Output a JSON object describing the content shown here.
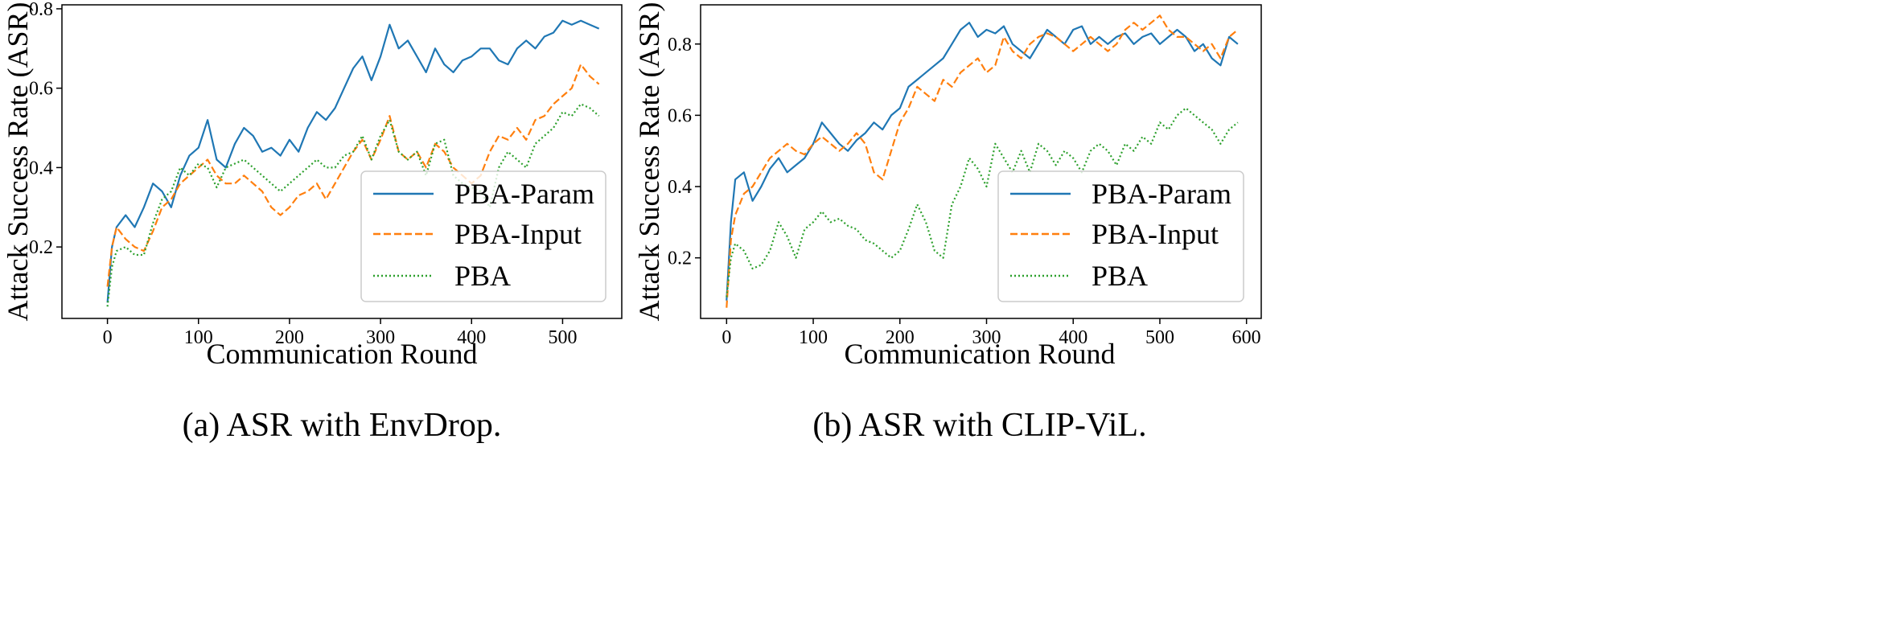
{
  "chart_data": [
    {
      "type": "line",
      "caption": "(a) ASR with EnvDrop.",
      "xlabel": "Communication Round",
      "ylabel": "Attack Success Rate (ASR)",
      "xlim": [
        -50,
        565
      ],
      "ylim": [
        0.02,
        0.81
      ],
      "xticks": [
        0,
        100,
        200,
        300,
        400,
        500
      ],
      "yticks": [
        0.2,
        0.4,
        0.6,
        0.8
      ],
      "grid": false,
      "legend_position": "lower right",
      "series": [
        {
          "name": "PBA-Param",
          "color": "#1f77b4",
          "style": "solid",
          "x": [
            0,
            5,
            10,
            20,
            30,
            40,
            50,
            60,
            70,
            80,
            90,
            100,
            110,
            120,
            130,
            140,
            150,
            160,
            170,
            180,
            190,
            200,
            210,
            220,
            230,
            240,
            250,
            260,
            270,
            280,
            290,
            300,
            310,
            320,
            330,
            340,
            350,
            360,
            370,
            380,
            390,
            400,
            410,
            420,
            430,
            440,
            450,
            460,
            470,
            480,
            490,
            500,
            510,
            520,
            530,
            540
          ],
          "y": [
            0.06,
            0.2,
            0.25,
            0.28,
            0.25,
            0.3,
            0.36,
            0.34,
            0.3,
            0.38,
            0.43,
            0.45,
            0.52,
            0.42,
            0.4,
            0.46,
            0.5,
            0.48,
            0.44,
            0.45,
            0.43,
            0.47,
            0.44,
            0.5,
            0.54,
            0.52,
            0.55,
            0.6,
            0.65,
            0.68,
            0.62,
            0.68,
            0.76,
            0.7,
            0.72,
            0.68,
            0.64,
            0.7,
            0.66,
            0.64,
            0.67,
            0.68,
            0.7,
            0.7,
            0.67,
            0.66,
            0.7,
            0.72,
            0.7,
            0.73,
            0.74,
            0.77,
            0.76,
            0.77,
            0.76,
            0.75
          ]
        },
        {
          "name": "PBA-Input",
          "color": "#ff7f0e",
          "style": "dashed",
          "x": [
            0,
            5,
            10,
            20,
            30,
            40,
            50,
            60,
            70,
            80,
            90,
            100,
            110,
            120,
            130,
            140,
            150,
            160,
            170,
            180,
            190,
            200,
            210,
            220,
            230,
            240,
            250,
            260,
            270,
            280,
            290,
            300,
            310,
            320,
            330,
            340,
            350,
            360,
            370,
            380,
            390,
            400,
            410,
            420,
            430,
            440,
            450,
            460,
            470,
            480,
            490,
            500,
            510,
            520,
            530,
            540
          ],
          "y": [
            0.1,
            0.2,
            0.25,
            0.22,
            0.2,
            0.19,
            0.24,
            0.3,
            0.32,
            0.36,
            0.38,
            0.4,
            0.42,
            0.38,
            0.36,
            0.36,
            0.38,
            0.36,
            0.34,
            0.3,
            0.28,
            0.3,
            0.33,
            0.34,
            0.36,
            0.32,
            0.36,
            0.4,
            0.44,
            0.47,
            0.42,
            0.47,
            0.53,
            0.44,
            0.42,
            0.44,
            0.4,
            0.46,
            0.44,
            0.4,
            0.38,
            0.36,
            0.38,
            0.44,
            0.48,
            0.47,
            0.5,
            0.47,
            0.52,
            0.53,
            0.56,
            0.58,
            0.6,
            0.66,
            0.63,
            0.61
          ]
        },
        {
          "name": "PBA",
          "color": "#2ca02c",
          "style": "dotted",
          "x": [
            0,
            5,
            10,
            20,
            30,
            40,
            50,
            60,
            70,
            80,
            90,
            100,
            110,
            120,
            130,
            140,
            150,
            160,
            170,
            180,
            190,
            200,
            210,
            220,
            230,
            240,
            250,
            260,
            270,
            280,
            290,
            300,
            310,
            320,
            330,
            340,
            350,
            360,
            370,
            380,
            390,
            400,
            410,
            420,
            430,
            440,
            450,
            460,
            470,
            480,
            490,
            500,
            510,
            520,
            530,
            540
          ],
          "y": [
            0.05,
            0.15,
            0.19,
            0.2,
            0.18,
            0.18,
            0.26,
            0.32,
            0.34,
            0.4,
            0.38,
            0.41,
            0.4,
            0.35,
            0.4,
            0.41,
            0.42,
            0.4,
            0.38,
            0.36,
            0.34,
            0.36,
            0.38,
            0.4,
            0.42,
            0.4,
            0.4,
            0.43,
            0.44,
            0.48,
            0.42,
            0.48,
            0.52,
            0.44,
            0.42,
            0.44,
            0.38,
            0.46,
            0.47,
            0.38,
            0.36,
            0.35,
            0.34,
            0.3,
            0.4,
            0.44,
            0.42,
            0.4,
            0.46,
            0.48,
            0.5,
            0.54,
            0.53,
            0.56,
            0.55,
            0.53
          ]
        }
      ]
    },
    {
      "type": "line",
      "caption": "(b) ASR with CLIP-ViL.",
      "xlabel": "Communication Round",
      "ylabel": "Attack Success Rate (ASR)",
      "xlim": [
        -30,
        617
      ],
      "ylim": [
        0.03,
        0.91
      ],
      "xticks": [
        0,
        100,
        200,
        300,
        400,
        500,
        600
      ],
      "yticks": [
        0.2,
        0.4,
        0.6,
        0.8
      ],
      "grid": false,
      "legend_position": "lower right",
      "series": [
        {
          "name": "PBA-Param",
          "color": "#1f77b4",
          "style": "solid",
          "x": [
            0,
            5,
            10,
            20,
            30,
            40,
            50,
            60,
            70,
            80,
            90,
            100,
            110,
            120,
            130,
            140,
            150,
            160,
            170,
            180,
            190,
            200,
            210,
            220,
            230,
            240,
            250,
            260,
            270,
            280,
            290,
            300,
            310,
            320,
            330,
            340,
            350,
            360,
            370,
            380,
            390,
            400,
            410,
            420,
            430,
            440,
            450,
            460,
            470,
            480,
            490,
            500,
            510,
            520,
            530,
            540,
            550,
            560,
            570,
            580,
            590
          ],
          "y": [
            0.08,
            0.3,
            0.42,
            0.44,
            0.36,
            0.4,
            0.45,
            0.48,
            0.44,
            0.46,
            0.48,
            0.52,
            0.58,
            0.55,
            0.52,
            0.5,
            0.53,
            0.55,
            0.58,
            0.56,
            0.6,
            0.62,
            0.68,
            0.7,
            0.72,
            0.74,
            0.76,
            0.8,
            0.84,
            0.86,
            0.82,
            0.84,
            0.83,
            0.85,
            0.8,
            0.78,
            0.76,
            0.8,
            0.84,
            0.82,
            0.8,
            0.84,
            0.85,
            0.8,
            0.82,
            0.8,
            0.82,
            0.83,
            0.8,
            0.82,
            0.83,
            0.8,
            0.82,
            0.84,
            0.82,
            0.78,
            0.8,
            0.76,
            0.74,
            0.82,
            0.8
          ]
        },
        {
          "name": "PBA-Input",
          "color": "#ff7f0e",
          "style": "dashed",
          "x": [
            0,
            5,
            10,
            20,
            30,
            40,
            50,
            60,
            70,
            80,
            90,
            100,
            110,
            120,
            130,
            140,
            150,
            160,
            170,
            180,
            190,
            200,
            210,
            220,
            230,
            240,
            250,
            260,
            270,
            280,
            290,
            300,
            310,
            320,
            330,
            340,
            350,
            360,
            370,
            380,
            390,
            400,
            410,
            420,
            430,
            440,
            450,
            460,
            470,
            480,
            490,
            500,
            510,
            520,
            530,
            540,
            550,
            560,
            570,
            580,
            590
          ],
          "y": [
            0.06,
            0.25,
            0.32,
            0.38,
            0.4,
            0.44,
            0.48,
            0.5,
            0.52,
            0.5,
            0.49,
            0.52,
            0.54,
            0.52,
            0.5,
            0.52,
            0.55,
            0.52,
            0.44,
            0.42,
            0.5,
            0.58,
            0.62,
            0.68,
            0.66,
            0.64,
            0.7,
            0.68,
            0.72,
            0.74,
            0.76,
            0.72,
            0.74,
            0.82,
            0.78,
            0.76,
            0.8,
            0.82,
            0.83,
            0.82,
            0.8,
            0.78,
            0.8,
            0.82,
            0.8,
            0.78,
            0.8,
            0.84,
            0.86,
            0.84,
            0.86,
            0.88,
            0.84,
            0.82,
            0.82,
            0.8,
            0.78,
            0.8,
            0.76,
            0.82,
            0.84
          ]
        },
        {
          "name": "PBA",
          "color": "#2ca02c",
          "style": "dotted",
          "x": [
            0,
            5,
            10,
            20,
            30,
            40,
            50,
            60,
            70,
            80,
            90,
            100,
            110,
            120,
            130,
            140,
            150,
            160,
            170,
            180,
            190,
            200,
            210,
            220,
            230,
            240,
            250,
            260,
            270,
            280,
            290,
            300,
            310,
            320,
            330,
            340,
            350,
            360,
            370,
            380,
            390,
            400,
            410,
            420,
            430,
            440,
            450,
            460,
            470,
            480,
            490,
            500,
            510,
            520,
            530,
            540,
            550,
            560,
            570,
            580,
            590
          ],
          "y": [
            0.09,
            0.2,
            0.24,
            0.22,
            0.17,
            0.18,
            0.22,
            0.3,
            0.26,
            0.2,
            0.28,
            0.3,
            0.33,
            0.3,
            0.31,
            0.29,
            0.28,
            0.25,
            0.24,
            0.22,
            0.2,
            0.22,
            0.28,
            0.35,
            0.3,
            0.22,
            0.2,
            0.35,
            0.4,
            0.48,
            0.45,
            0.4,
            0.52,
            0.48,
            0.44,
            0.5,
            0.44,
            0.52,
            0.5,
            0.46,
            0.5,
            0.48,
            0.44,
            0.5,
            0.52,
            0.5,
            0.46,
            0.52,
            0.5,
            0.54,
            0.52,
            0.58,
            0.56,
            0.6,
            0.62,
            0.6,
            0.58,
            0.56,
            0.52,
            0.56,
            0.58
          ]
        }
      ]
    }
  ]
}
